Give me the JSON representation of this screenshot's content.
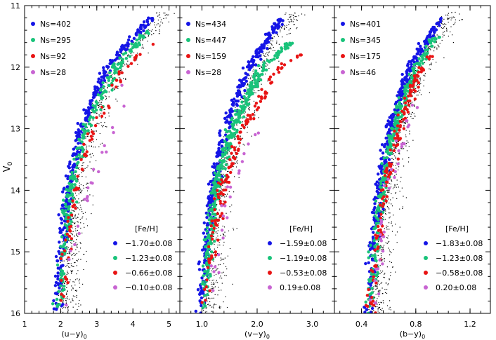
{
  "figure": {
    "ylabel": "V",
    "ylabel_sub": "0",
    "ylim": [
      11,
      16
    ],
    "yticks": [
      11,
      12,
      13,
      14,
      15,
      16
    ]
  },
  "colors": {
    "metal_poor": "#1515e6",
    "intermediate": "#19c37a",
    "metal_rich": "#e81414",
    "most_rich": "#c864d2",
    "field": "#000000"
  },
  "chart_data": [
    {
      "type": "scatter",
      "panel": "left",
      "xlabel": "(u−y)",
      "xlabel_sub": "0",
      "xlim": [
        1,
        5.3
      ],
      "xticks": [
        1,
        2,
        3,
        4,
        5
      ],
      "counts_legend": [
        "Ns=402",
        "Ns=295",
        "Ns=92",
        "Ns=28"
      ],
      "feh_title": "[Fe/H]",
      "series": [
        {
          "name": "−1.70±0.08",
          "color_key": "metal_poor",
          "n": 402,
          "ridge": [
            [
              16.0,
              1.88
            ],
            [
              15.0,
              2.02
            ],
            [
              14.0,
              2.2
            ],
            [
              13.0,
              2.55
            ],
            [
              12.0,
              3.3
            ],
            [
              11.2,
              4.5
            ]
          ]
        },
        {
          "name": "−1.23±0.08",
          "color_key": "intermediate",
          "n": 295,
          "ridge": [
            [
              16.0,
              1.92
            ],
            [
              15.0,
              2.08
            ],
            [
              14.0,
              2.28
            ],
            [
              13.0,
              2.7
            ],
            [
              12.0,
              3.55
            ],
            [
              11.4,
              4.4
            ]
          ]
        },
        {
          "name": "−0.66±0.08",
          "color_key": "metal_rich",
          "n": 92,
          "ridge": [
            [
              16.0,
              1.98
            ],
            [
              15.0,
              2.15
            ],
            [
              14.0,
              2.4
            ],
            [
              13.0,
              2.9
            ],
            [
              12.0,
              3.8
            ],
            [
              11.6,
              4.6
            ]
          ]
        },
        {
          "name": "−0.10±0.08",
          "color_key": "most_rich",
          "n": 28,
          "ridge": [
            [
              16.0,
              2.05
            ],
            [
              15.0,
              2.3
            ],
            [
              14.0,
              2.75
            ],
            [
              13.0,
              3.4
            ],
            [
              12.2,
              3.8
            ]
          ]
        }
      ]
    },
    {
      "type": "scatter",
      "panel": "middle",
      "xlabel": "(v−y)",
      "xlabel_sub": "0",
      "xlim": [
        0.6,
        3.4
      ],
      "xticks": [
        1.0,
        2.0,
        3.0
      ],
      "counts_legend": [
        "Ns=434",
        "Ns=447",
        "Ns=159",
        "Ns=28"
      ],
      "feh_title": "[Fe/H]",
      "series": [
        {
          "name": "−1.59±0.08",
          "color_key": "metal_poor",
          "n": 434,
          "ridge": [
            [
              16.0,
              0.98
            ],
            [
              15.0,
              1.06
            ],
            [
              14.0,
              1.18
            ],
            [
              13.0,
              1.42
            ],
            [
              12.0,
              1.85
            ],
            [
              11.2,
              2.45
            ]
          ]
        },
        {
          "name": "−1.19±0.08",
          "color_key": "intermediate",
          "n": 447,
          "ridge": [
            [
              16.0,
              1.02
            ],
            [
              15.0,
              1.12
            ],
            [
              14.0,
              1.25
            ],
            [
              13.0,
              1.55
            ],
            [
              12.0,
              2.1
            ],
            [
              11.6,
              2.6
            ]
          ]
        },
        {
          "name": "−0.53±0.08",
          "color_key": "metal_rich",
          "n": 159,
          "ridge": [
            [
              16.0,
              1.06
            ],
            [
              15.0,
              1.18
            ],
            [
              14.0,
              1.35
            ],
            [
              13.0,
              1.75
            ],
            [
              12.0,
              2.4
            ],
            [
              11.8,
              2.8
            ]
          ]
        },
        {
          "name": "0.19±0.08",
          "color_key": "most_rich",
          "n": 28,
          "ridge": [
            [
              16.0,
              1.1
            ],
            [
              15.0,
              1.28
            ],
            [
              14.0,
              1.5
            ],
            [
              13.0,
              2.0
            ],
            [
              12.5,
              2.3
            ]
          ]
        }
      ]
    },
    {
      "type": "scatter",
      "panel": "right",
      "xlabel": "(b−y)",
      "xlabel_sub": "0",
      "xlim": [
        0.2,
        1.35
      ],
      "xticks": [
        0.4,
        0.8,
        1.2
      ],
      "counts_legend": [
        "Ns=401",
        "Ns=345",
        "Ns=175",
        "Ns=46"
      ],
      "feh_title": "[Fe/H]",
      "series": [
        {
          "name": "−1.83±0.08",
          "color_key": "metal_poor",
          "n": 401,
          "ridge": [
            [
              16.0,
              0.45
            ],
            [
              15.0,
              0.48
            ],
            [
              14.0,
              0.53
            ],
            [
              13.0,
              0.61
            ],
            [
              12.0,
              0.76
            ],
            [
              11.2,
              0.98
            ]
          ]
        },
        {
          "name": "−1.23±0.08",
          "color_key": "intermediate",
          "n": 345,
          "ridge": [
            [
              16.0,
              0.46
            ],
            [
              15.0,
              0.5
            ],
            [
              14.0,
              0.55
            ],
            [
              13.0,
              0.64
            ],
            [
              12.0,
              0.8
            ],
            [
              11.5,
              0.95
            ]
          ]
        },
        {
          "name": "−0.58±0.08",
          "color_key": "metal_rich",
          "n": 175,
          "ridge": [
            [
              16.0,
              0.47
            ],
            [
              15.0,
              0.51
            ],
            [
              14.0,
              0.57
            ],
            [
              13.0,
              0.67
            ],
            [
              12.0,
              0.84
            ],
            [
              11.8,
              0.92
            ]
          ]
        },
        {
          "name": "0.20±0.08",
          "color_key": "most_rich",
          "n": 46,
          "ridge": [
            [
              16.0,
              0.48
            ],
            [
              15.0,
              0.53
            ],
            [
              14.0,
              0.6
            ],
            [
              13.0,
              0.72
            ],
            [
              12.5,
              0.8
            ]
          ]
        }
      ]
    }
  ]
}
